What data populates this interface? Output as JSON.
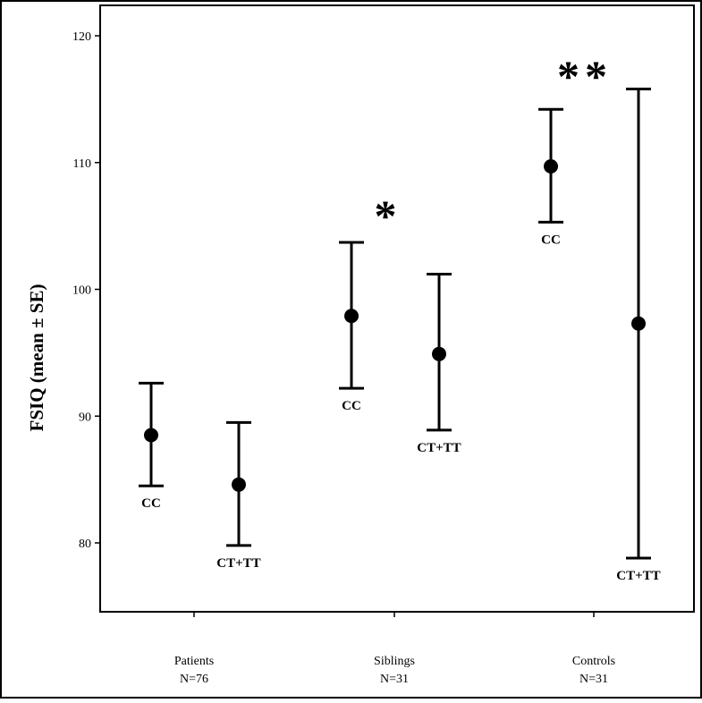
{
  "chart_data": {
    "type": "errorbar",
    "ylabel": "FSIQ (mean ± SE)",
    "xlabel": "",
    "ylim": [
      74,
      124
    ],
    "yticks": [
      80,
      90,
      100,
      110,
      120
    ],
    "grid": false,
    "categories": [
      {
        "line1": "Patients",
        "line2": "N=76"
      },
      {
        "line1": "Siblings",
        "line2": "N=31"
      },
      {
        "line1": "Controls",
        "line2": "N=31"
      }
    ],
    "points": [
      {
        "category": "Patients",
        "group": "CC",
        "mean": 88.5,
        "lower": 84.5,
        "upper": 92.6
      },
      {
        "category": "Patients",
        "group": "CT+TT",
        "mean": 84.6,
        "lower": 79.8,
        "upper": 89.5
      },
      {
        "category": "Siblings",
        "group": "CC",
        "mean": 97.9,
        "lower": 92.2,
        "upper": 103.7
      },
      {
        "category": "Siblings",
        "group": "CT+TT",
        "mean": 94.9,
        "lower": 88.9,
        "upper": 101.2
      },
      {
        "category": "Controls",
        "group": "CC",
        "mean": 109.7,
        "lower": 105.3,
        "upper": 114.2
      },
      {
        "category": "Controls",
        "group": "CT+TT",
        "mean": 97.3,
        "lower": 78.8,
        "upper": 115.8
      }
    ],
    "annotations": [
      {
        "text": "*",
        "category": "Siblings"
      },
      {
        "text": "**",
        "category": "Controls"
      }
    ]
  }
}
